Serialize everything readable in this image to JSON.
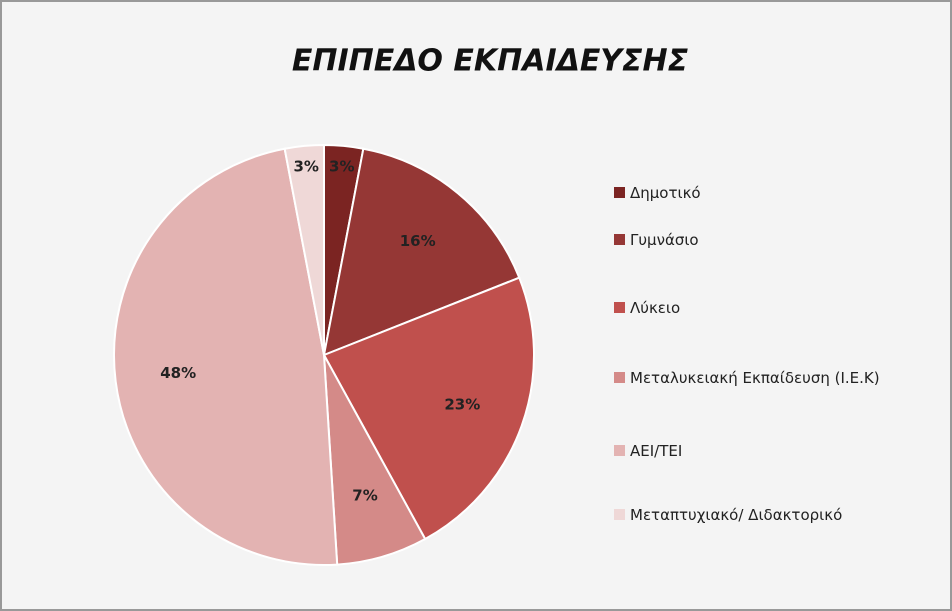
{
  "chart_data": {
    "type": "pie",
    "title": "ΕΠΙΠΕΔΟ ΕΚΠΑΙΔΕΥΣΗΣ",
    "categories": [
      "Δημοτικό",
      "Γυμνάσιο",
      "Λύκειο",
      "Μεταλυκειακή Εκπαίδευση (Ι.Ε.Κ)",
      "ΑΕΙ/ΤΕΙ",
      "Μεταπτυχιακό/ Διδακτορικό"
    ],
    "values": [
      3,
      16,
      23,
      7,
      48,
      3
    ],
    "value_labels": [
      "3%",
      "16%",
      "23%",
      "7%",
      "48%",
      "3%"
    ],
    "colors": [
      "#7b2422",
      "#953735",
      "#c0504d",
      "#d48a88",
      "#e3b3b2",
      "#efd8d7"
    ],
    "legend": "right"
  }
}
